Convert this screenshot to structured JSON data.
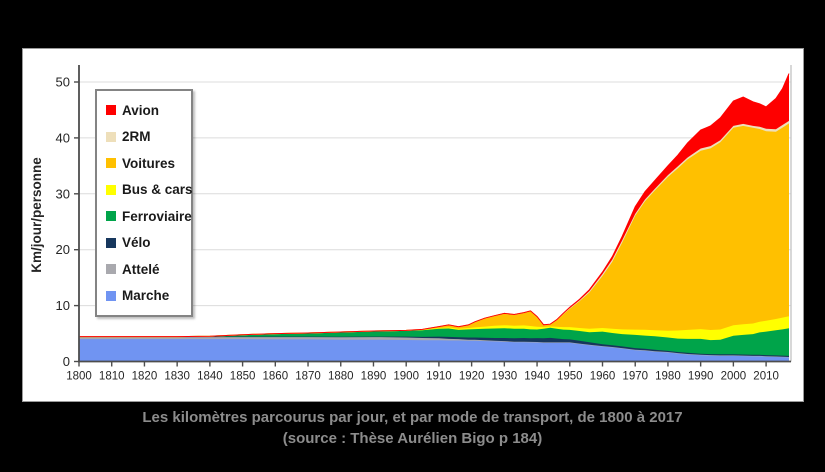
{
  "caption": {
    "line1": "Les kilomètres parcourus par jour, et par mode de transport, de 1800 à 2017",
    "line2": "(source : Thèse Aurélien Bigo p 184)"
  },
  "colors": {
    "page_background": "#000000",
    "panel_background": "#FFFFFF",
    "gridline": "#DCDCDC",
    "axis_line": "#4D4D4D",
    "plot_right_border": "#BFBFBF",
    "tick_label": "#262626",
    "caption_text": "#8C8C8C",
    "legend_border": "#848484"
  },
  "chart_data": {
    "type": "area",
    "stacked": true,
    "title": "",
    "xlabel": "",
    "ylabel": "Km/jour/personne",
    "xlim": [
      1800,
      2017
    ],
    "ylim": [
      0,
      52
    ],
    "x_ticks": [
      1800,
      1810,
      1820,
      1830,
      1840,
      1850,
      1860,
      1870,
      1880,
      1890,
      1900,
      1910,
      1920,
      1930,
      1940,
      1950,
      1960,
      1970,
      1980,
      1990,
      2000,
      2010
    ],
    "y_ticks": [
      0,
      10,
      20,
      30,
      40,
      50
    ],
    "grid": "horizontal",
    "legend_position": "upper-left-inside",
    "legend_order_top_to_bottom": [
      "Avion",
      "2RM",
      "Voitures",
      "Bus & cars",
      "Ferroviaire",
      "Vélo",
      "Attelé",
      "Marche"
    ],
    "unit": "km/jour/personne",
    "years": [
      1800,
      1810,
      1820,
      1830,
      1840,
      1850,
      1860,
      1870,
      1880,
      1890,
      1900,
      1905,
      1910,
      1913,
      1916,
      1919,
      1921,
      1924,
      1927,
      1930,
      1933,
      1936,
      1938,
      1940,
      1942,
      1944,
      1946,
      1948,
      1950,
      1953,
      1956,
      1960,
      1963,
      1966,
      1970,
      1973,
      1976,
      1980,
      1983,
      1986,
      1990,
      1993,
      1996,
      2000,
      2003,
      2006,
      2008,
      2010,
      2013,
      2015,
      2017
    ],
    "series": [
      {
        "name": "marche",
        "label": "Marche",
        "color": "#7094F2",
        "values": [
          4,
          4,
          4,
          4,
          4,
          4,
          3.95,
          3.95,
          3.9,
          3.9,
          3.85,
          3.8,
          3.8,
          3.75,
          3.75,
          3.7,
          3.7,
          3.65,
          3.6,
          3.55,
          3.5,
          3.5,
          3.45,
          3.45,
          3.4,
          3.4,
          3.4,
          3.4,
          3.4,
          3.2,
          3,
          2.75,
          2.6,
          2.4,
          2.1,
          2,
          1.85,
          1.7,
          1.5,
          1.35,
          1.2,
          1.15,
          1.1,
          1.1,
          1.05,
          1,
          1,
          0.95,
          0.9,
          0.85,
          0.8
        ]
      },
      {
        "name": "attele",
        "label": "Attelé",
        "color": "#A9A9AE",
        "values": [
          0.45,
          0.45,
          0.45,
          0.45,
          0.45,
          0.45,
          0.5,
          0.5,
          0.5,
          0.5,
          0.45,
          0.4,
          0.35,
          0.3,
          0.25,
          0.2,
          0.2,
          0.15,
          0.1,
          0.1,
          0.05,
          0.05,
          0.05,
          0.03,
          0.02,
          0.02,
          0.01,
          0.01,
          0.01,
          0,
          0,
          0,
          0,
          0,
          0,
          0,
          0,
          0,
          0,
          0,
          0,
          0,
          0,
          0,
          0,
          0,
          0,
          0,
          0,
          0,
          0
        ]
      },
      {
        "name": "velo",
        "label": "Vélo",
        "color": "#17375D",
        "values": [
          0,
          0,
          0,
          0,
          0,
          0,
          0,
          0,
          0.02,
          0.05,
          0.15,
          0.2,
          0.3,
          0.35,
          0.35,
          0.4,
          0.4,
          0.45,
          0.5,
          0.55,
          0.6,
          0.65,
          0.65,
          0.7,
          0.75,
          0.8,
          0.7,
          0.6,
          0.55,
          0.5,
          0.45,
          0.35,
          0.3,
          0.3,
          0.3,
          0.28,
          0.25,
          0.2,
          0.2,
          0.2,
          0.2,
          0.18,
          0.18,
          0.2,
          0.2,
          0.2,
          0.2,
          0.2,
          0.2,
          0.2,
          0.2
        ]
      },
      {
        "name": "ferroviaire",
        "label": "Ferroviaire",
        "color": "#00A44A",
        "values": [
          0,
          0,
          0,
          0,
          0.05,
          0.35,
          0.55,
          0.65,
          0.85,
          1,
          1.1,
          1.2,
          1.4,
          1.5,
          1.3,
          1.45,
          1.5,
          1.6,
          1.7,
          1.75,
          1.7,
          1.65,
          1.6,
          1.55,
          1.7,
          1.8,
          1.75,
          1.7,
          1.7,
          1.75,
          1.8,
          2.25,
          2.2,
          2.2,
          2.35,
          2.35,
          2.4,
          2.4,
          2.4,
          2.5,
          2.65,
          2.5,
          2.6,
          3.3,
          3.5,
          3.7,
          4,
          4.2,
          4.5,
          4.7,
          4.95
        ]
      },
      {
        "name": "bus-cars",
        "label": "Bus & cars",
        "color": "#FFFF00",
        "values": [
          0,
          0,
          0,
          0,
          0,
          0,
          0,
          0,
          0,
          0,
          0.02,
          0.1,
          0.15,
          0.2,
          0.2,
          0.25,
          0.3,
          0.4,
          0.5,
          0.55,
          0.55,
          0.6,
          0.6,
          0.5,
          0.3,
          0.25,
          0.35,
          0.45,
          0.5,
          0.55,
          0.6,
          0.65,
          0.75,
          0.85,
          0.95,
          1.05,
          1.1,
          1.2,
          1.45,
          1.6,
          1.75,
          1.8,
          1.85,
          1.9,
          1.9,
          1.9,
          1.9,
          1.95,
          2,
          2.1,
          2.15
        ]
      },
      {
        "name": "voitures",
        "label": "Voitures",
        "color": "#FFC000",
        "values": [
          0,
          0,
          0,
          0,
          0,
          0,
          0,
          0,
          0,
          0,
          0,
          0.05,
          0.25,
          0.45,
          0.35,
          0.55,
          1,
          1.5,
          1.8,
          2.1,
          2,
          2.3,
          2.7,
          1.8,
          0.4,
          0.4,
          1.2,
          2.3,
          3.3,
          4.8,
          6.5,
          9.3,
          12,
          15.5,
          20.4,
          23,
          25,
          27.5,
          29,
          30.5,
          31.9,
          32.5,
          33.5,
          35.3,
          35.5,
          35,
          34.5,
          33.9,
          33.5,
          34,
          34.5
        ]
      },
      {
        "name": "deux-rm",
        "label": "2RM",
        "color": "#EEDFBA",
        "values": [
          0,
          0,
          0,
          0,
          0,
          0,
          0,
          0,
          0,
          0,
          0,
          0,
          0,
          0,
          0,
          0,
          0,
          0,
          0,
          0,
          0,
          0,
          0,
          0,
          0,
          0,
          0.05,
          0.1,
          0.1,
          0.15,
          0.25,
          0.35,
          0.4,
          0.4,
          0.3,
          0.3,
          0.3,
          0.35,
          0.35,
          0.35,
          0.4,
          0.4,
          0.35,
          0.35,
          0.35,
          0.35,
          0.4,
          0.45,
          0.45,
          0.45,
          0.45
        ]
      },
      {
        "name": "avion",
        "label": "Avion",
        "color": "#FE0000",
        "values": [
          0,
          0,
          0,
          0,
          0,
          0,
          0,
          0,
          0,
          0,
          0,
          0,
          0,
          0,
          0,
          0,
          0,
          0,
          0,
          0,
          0,
          0,
          0,
          0,
          0,
          0,
          0.02,
          0.05,
          0.15,
          0.2,
          0.25,
          0.35,
          0.5,
          0.7,
          1.3,
          1.4,
          1.5,
          1.65,
          2,
          2.6,
          3.3,
          3.6,
          4,
          4.45,
          4.8,
          4.3,
          4.1,
          3.9,
          5.5,
          6.5,
          8.45
        ]
      }
    ]
  }
}
